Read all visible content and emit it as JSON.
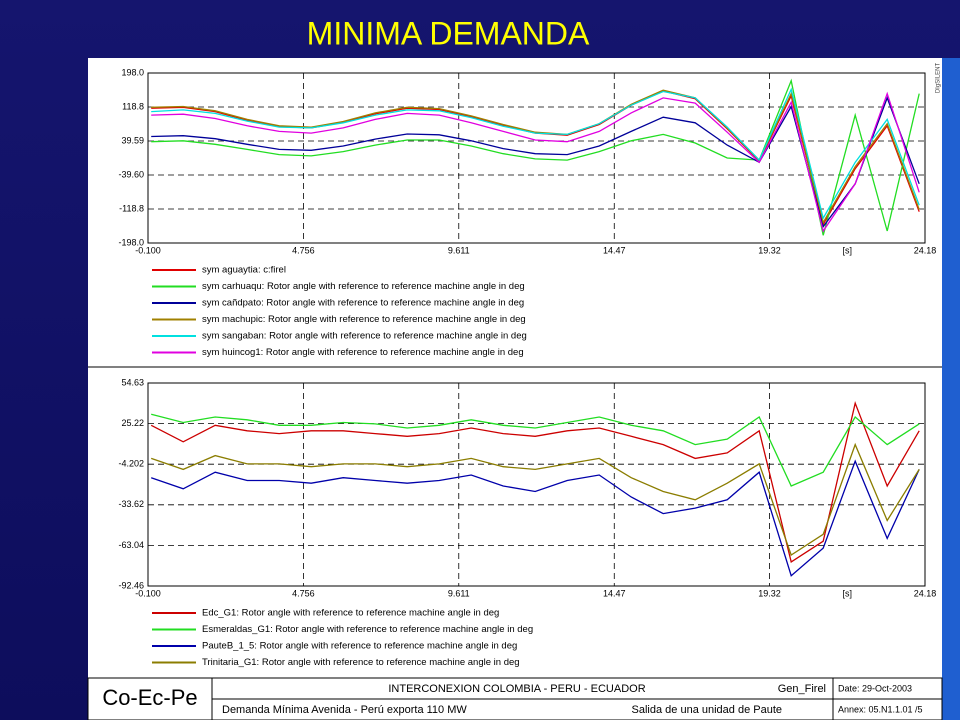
{
  "slide_title": "MINIMA DEMANDA",
  "watermark": "DIgSILENT",
  "footer": {
    "logo": "Co-Ec-Pe",
    "project": "INTERCONEXION COLOMBIA - PERU - ECUADOR",
    "case": "Gen_Firel",
    "date": "Date:  29-Oct-2003",
    "scenario": "Demanda Mínima Avenida - Perú exporta 110 MW",
    "event": "Salida de una unidad de Paute",
    "annex": "Annex: 05.N1.1.01 /5"
  },
  "chart_data": [
    {
      "type": "line",
      "xlabel": "[s]",
      "x": [
        0,
        1,
        2,
        3,
        4,
        5,
        6,
        7,
        8,
        9,
        10,
        11,
        12,
        13,
        14,
        15,
        16,
        17,
        18,
        19,
        20,
        21,
        22,
        23,
        24
      ],
      "xlim": [
        -0.1,
        24.18
      ],
      "xticks": [
        {
          "value": -0.1,
          "label": "-0.100"
        },
        4.756,
        9.611,
        14.47,
        19.32,
        24.18
      ],
      "ylim": [
        -198,
        198
      ],
      "yticks": [
        {
          "value": 198,
          "label": "198.0"
        },
        118.8,
        39.59,
        {
          "value": -39.6,
          "label": "-39.60"
        },
        -118.8,
        {
          "value": -198,
          "label": "-198.0"
        }
      ],
      "grid": true,
      "series": [
        {
          "name": "sym aguaytia: c:firel",
          "color": "#e00000",
          "values": [
            116,
            118,
            108,
            88,
            73,
            70,
            83,
            103,
            116,
            113,
            96,
            76,
            58,
            53,
            78,
            123,
            156,
            138,
            68,
            -7,
            145,
            -155,
            -25,
            75,
            -125
          ]
        },
        {
          "name": "sym carhuaqu: Rotor angle with reference to reference machine angle in deg",
          "color": "#22dd22",
          "values": [
            38,
            40,
            32,
            20,
            8,
            5,
            15,
            30,
            42,
            42,
            28,
            10,
            -2,
            -5,
            15,
            40,
            55,
            35,
            0,
            -5,
            180,
            -180,
            100,
            -170,
            150
          ]
        },
        {
          "name": "sym cañdpato: Rotor angle with reference to reference machine angle in deg",
          "color": "#000099",
          "values": [
            50,
            52,
            45,
            32,
            20,
            18,
            28,
            44,
            56,
            54,
            40,
            22,
            10,
            8,
            28,
            62,
            95,
            82,
            30,
            -10,
            120,
            -160,
            -60,
            140,
            -60
          ]
        },
        {
          "name": "sym machupic: Rotor angle with reference to reference machine angle in deg",
          "color": "#a08000",
          "values": [
            118,
            120,
            110,
            90,
            75,
            72,
            85,
            105,
            118,
            115,
            98,
            78,
            60,
            55,
            80,
            125,
            158,
            140,
            70,
            -5,
            150,
            -150,
            -20,
            80,
            -120
          ]
        },
        {
          "name": "sym sangaban: Rotor angle with reference to reference machine angle in deg",
          "color": "#00e0e0",
          "values": [
            108,
            112,
            104,
            86,
            72,
            70,
            82,
            100,
            112,
            110,
            94,
            74,
            58,
            55,
            80,
            123,
            155,
            140,
            72,
            -5,
            160,
            -140,
            -10,
            90,
            -110
          ]
        },
        {
          "name": "sym huincog1: Rotor angle with reference to reference machine angle in deg",
          "color": "#e000e0",
          "values": [
            100,
            102,
            92,
            75,
            62,
            58,
            70,
            90,
            104,
            100,
            82,
            62,
            42,
            38,
            62,
            105,
            140,
            128,
            60,
            -10,
            130,
            -170,
            -60,
            150,
            -80
          ]
        }
      ]
    },
    {
      "type": "line",
      "xlabel": "[s]",
      "x": [
        0,
        1,
        2,
        3,
        4,
        5,
        6,
        7,
        8,
        9,
        10,
        11,
        12,
        13,
        14,
        15,
        16,
        17,
        18,
        19,
        20,
        21,
        22,
        23,
        24
      ],
      "xlim": [
        -0.1,
        24.18
      ],
      "xticks": [
        {
          "value": -0.1,
          "label": "-0.100"
        },
        4.756,
        9.611,
        14.47,
        19.32,
        24.18
      ],
      "ylim": [
        -92.46,
        54.63
      ],
      "yticks": [
        54.63,
        25.22,
        -4.202,
        -33.62,
        -63.04,
        -92.46
      ],
      "grid": true,
      "series": [
        {
          "name": "Edc_G1: Rotor angle with reference to reference machine angle in deg",
          "color": "#cc0000",
          "values": [
            24,
            12,
            24,
            20,
            18,
            20,
            20,
            18,
            16,
            18,
            22,
            18,
            16,
            20,
            22,
            16,
            10,
            0,
            4,
            20,
            -75,
            -60,
            40,
            -20,
            20
          ]
        },
        {
          "name": "Esmeraldas_G1: Rotor angle with reference to reference machine angle in deg",
          "color": "#22dd22",
          "values": [
            32,
            26,
            30,
            28,
            24,
            24,
            26,
            25,
            22,
            24,
            28,
            24,
            22,
            26,
            30,
            24,
            20,
            10,
            14,
            30,
            -20,
            -10,
            30,
            10,
            25
          ]
        },
        {
          "name": "PauteB_1_5: Rotor angle with reference to reference machine angle in deg",
          "color": "#0000aa",
          "values": [
            -14,
            -22,
            -10,
            -16,
            -16,
            -18,
            -14,
            -16,
            -18,
            -16,
            -12,
            -20,
            -24,
            -16,
            -12,
            -28,
            -40,
            -36,
            -30,
            -10,
            -85,
            -65,
            -2,
            -58,
            -8
          ]
        },
        {
          "name": "Trinitaria_G1: Rotor angle with reference to reference machine angle in deg",
          "color": "#8b7d00",
          "values": [
            0,
            -8,
            2,
            -4,
            -4,
            -6,
            -4,
            -4,
            -6,
            -4,
            0,
            -6,
            -8,
            -4,
            0,
            -14,
            -24,
            -30,
            -18,
            -4,
            -70,
            -55,
            10,
            -45,
            -8
          ]
        }
      ]
    }
  ]
}
